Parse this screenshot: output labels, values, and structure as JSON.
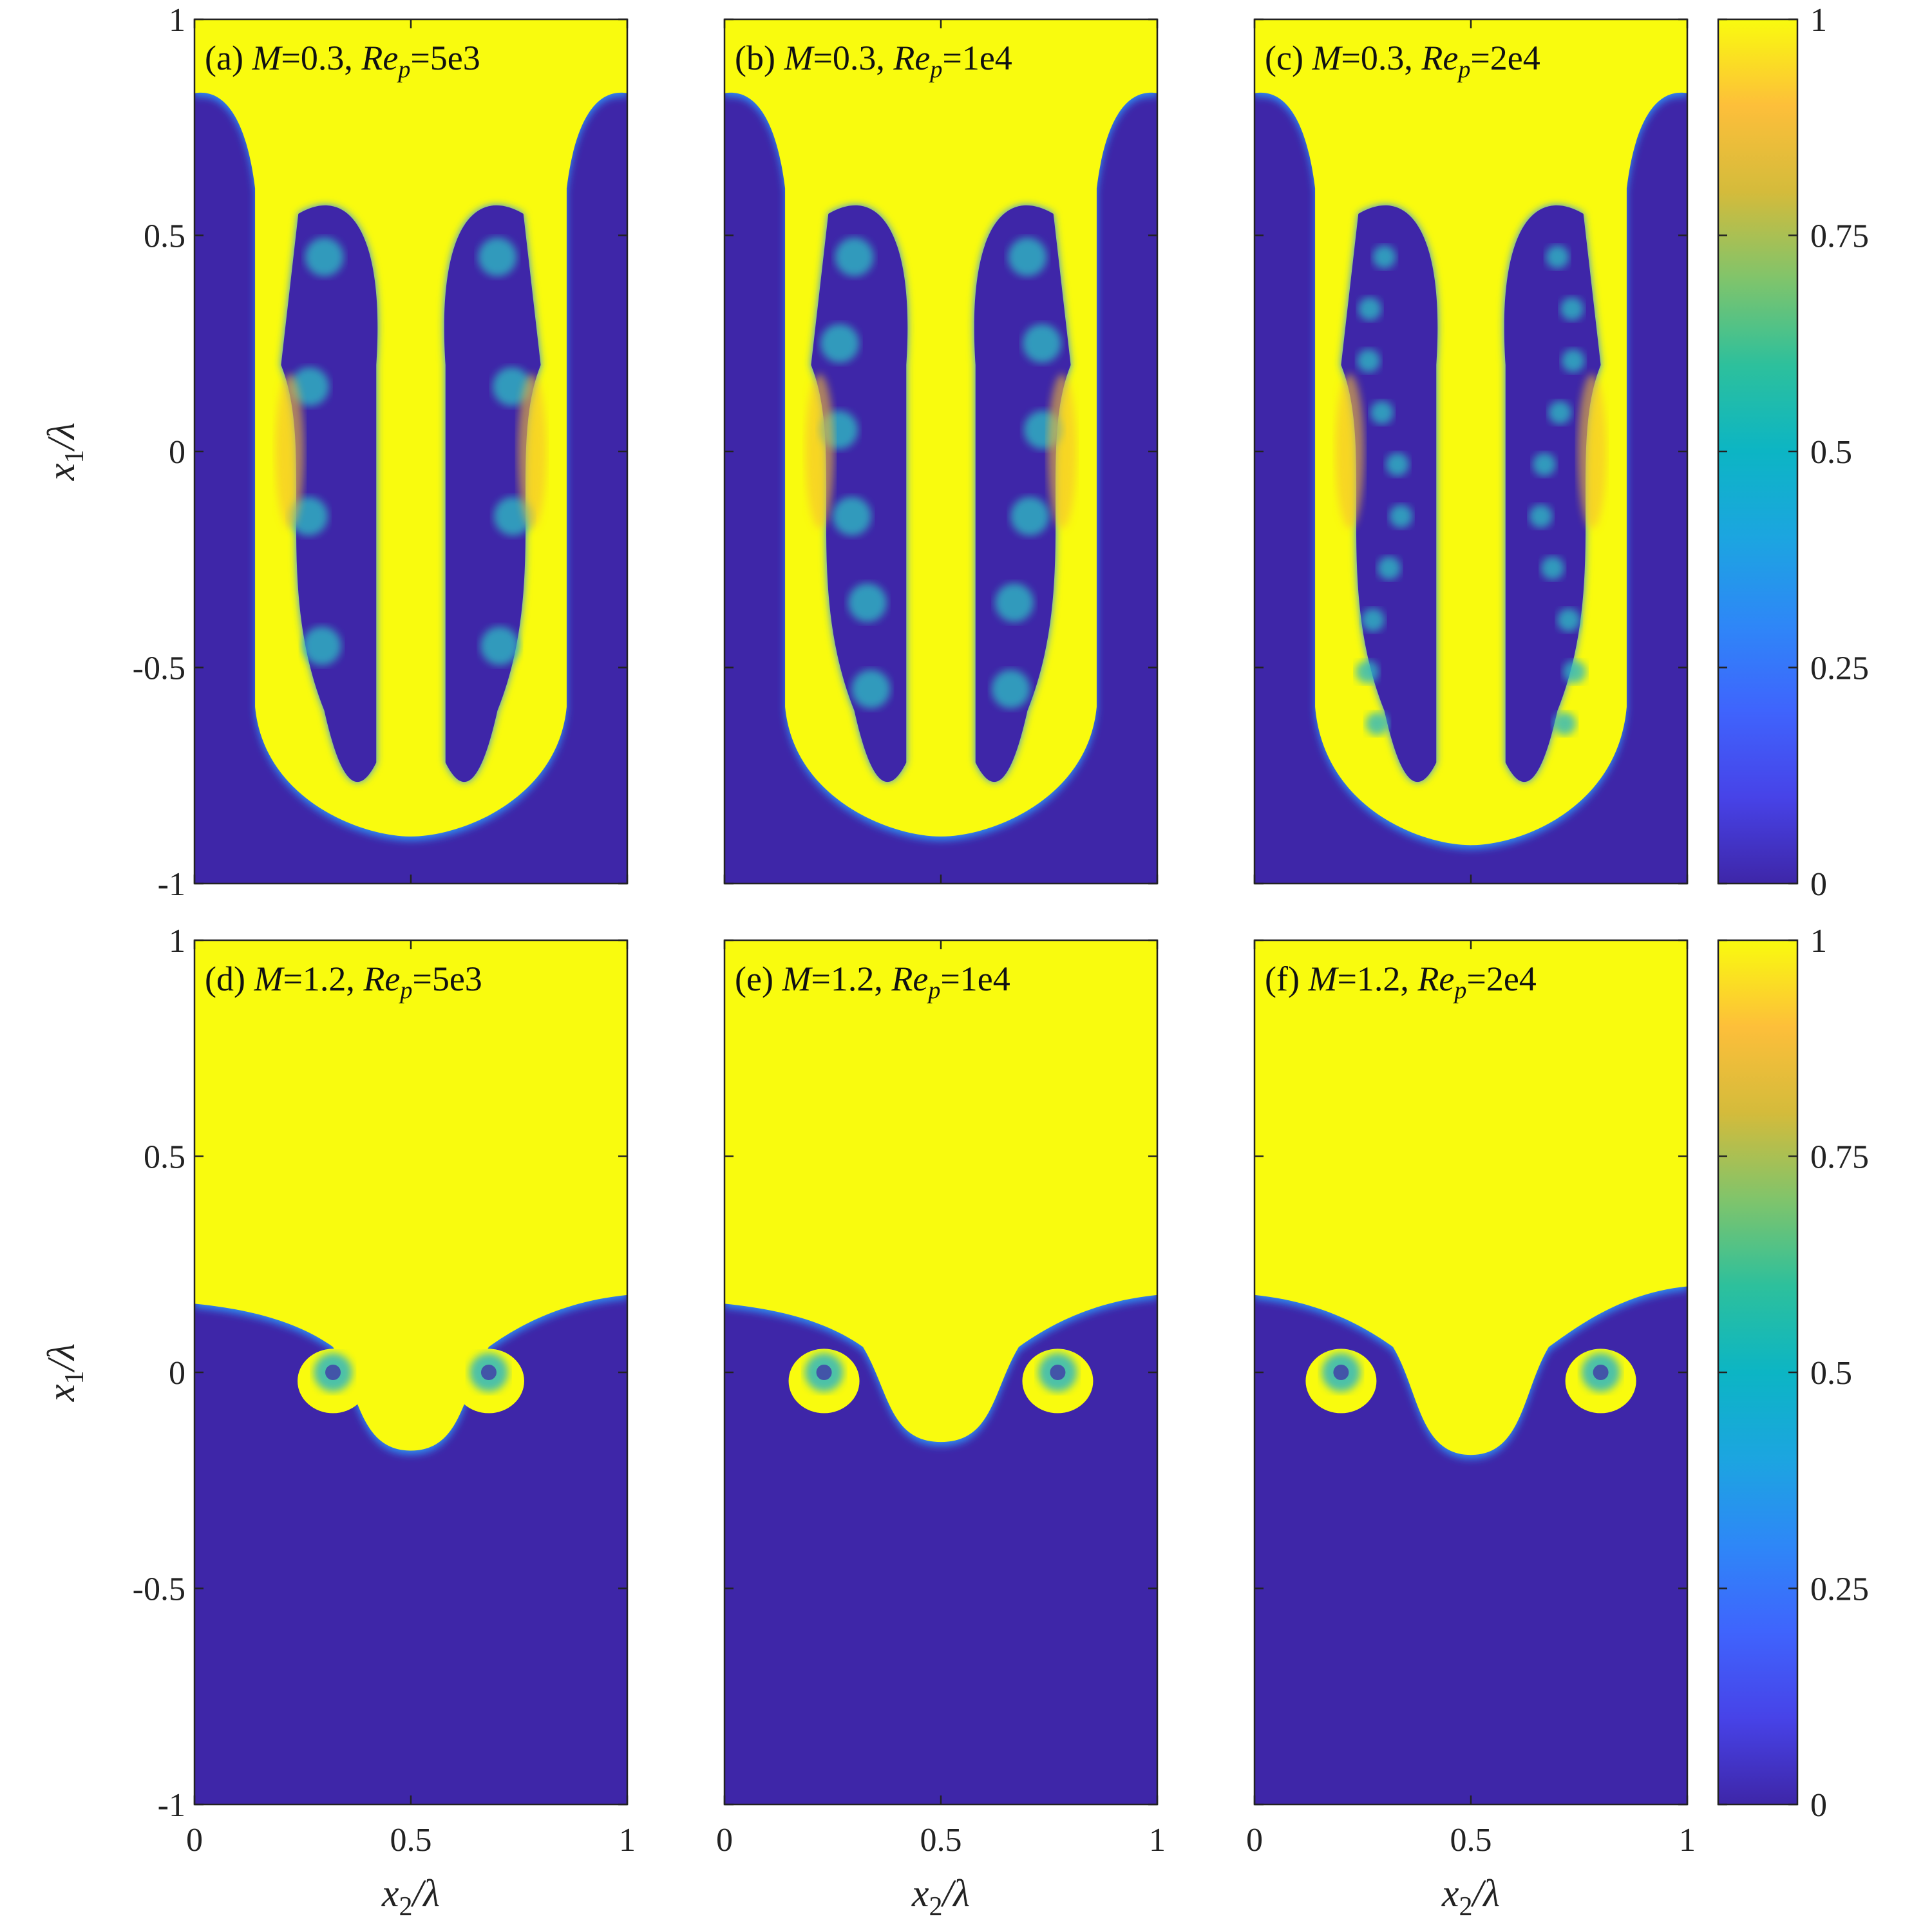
{
  "chart_data": {
    "type": "heatmap",
    "colormap": "parula",
    "colorbar": {
      "range": [
        0,
        1
      ],
      "ticks": [
        0,
        0.25,
        0.5,
        0.75,
        1
      ],
      "tick_labels": [
        "0",
        "0.25",
        "0.5",
        "0.75",
        "1"
      ]
    },
    "xlabel": "x2/λ",
    "ylabel": "x1/λ",
    "xlim": [
      0,
      1
    ],
    "ylim": [
      -1,
      1
    ],
    "xticks": [
      "0",
      "0.5",
      "1"
    ],
    "yticks": [
      "1",
      "0.5",
      "0",
      "-0.5",
      "-1"
    ],
    "panels": [
      {
        "label": "(a)",
        "M": "0.3",
        "Re_p": "5e3",
        "interface_top": 0.82,
        "spike_tip": -0.9,
        "mixing": "moderate rollups along spike"
      },
      {
        "label": "(b)",
        "M": "0.3",
        "Re_p": "1e4",
        "interface_top": 0.82,
        "spike_tip": -0.9,
        "mixing": "stronger rollups, stretched filaments"
      },
      {
        "label": "(c)",
        "M": "0.3",
        "Re_p": "2e4",
        "interface_top": 0.82,
        "spike_tip": -0.92,
        "mixing": "many small-scale vortices"
      },
      {
        "label": "(d)",
        "M": "1.2",
        "Re_p": "5e3",
        "interface_top": 0.17,
        "spike_tip": -0.19,
        "mixing": "single mushroom cap"
      },
      {
        "label": "(e)",
        "M": "1.2",
        "Re_p": "1e4",
        "interface_top": 0.17,
        "spike_tip": -0.17,
        "mixing": "wider mushroom with inner rollups"
      },
      {
        "label": "(f)",
        "M": "1.2",
        "Re_p": "2e4",
        "interface_top": 0.19,
        "spike_tip": -0.2,
        "mixing": "thin stretched rollups"
      }
    ]
  },
  "colors": {
    "heavy": "#f9fb0e",
    "light": "#3e26a8",
    "mix_cyan": "#2fb7c2",
    "mix_blue": "#2f8df1",
    "mix_orange": "#f6be30"
  }
}
